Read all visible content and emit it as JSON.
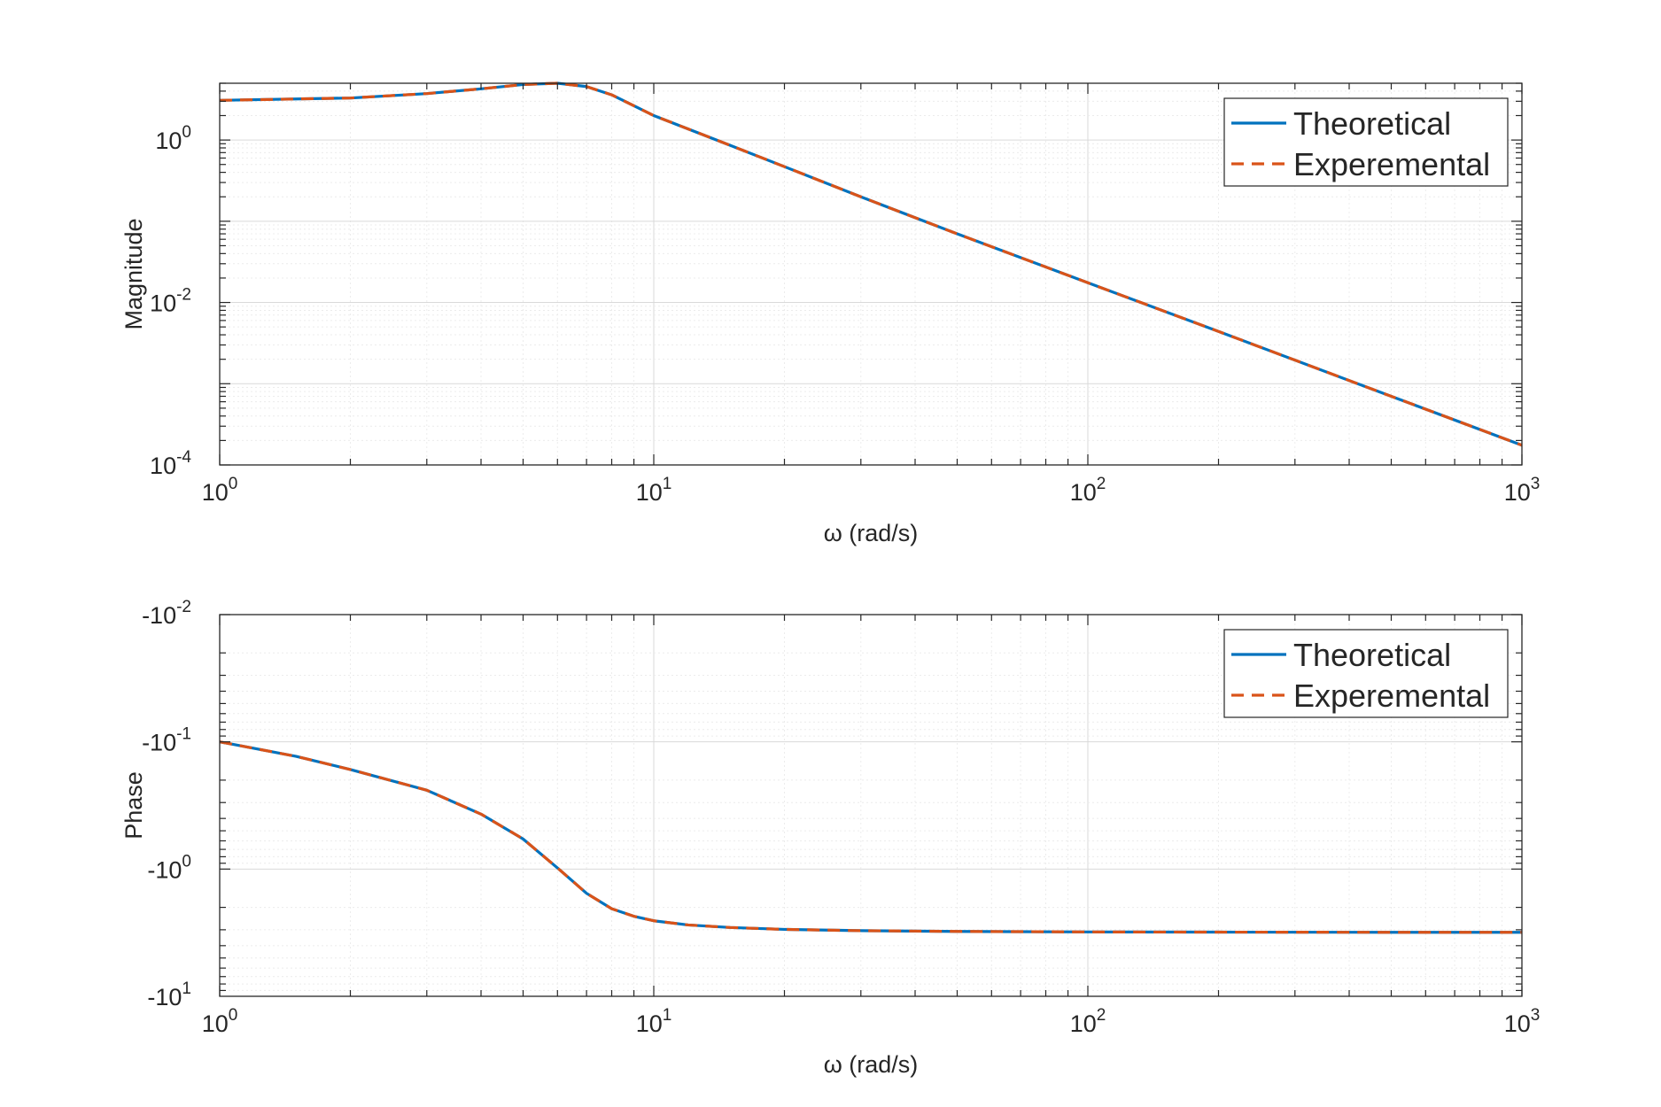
{
  "chart_data": [
    {
      "type": "line",
      "xscale": "log",
      "yscale": "log",
      "xlabel": "ω (rad/s)",
      "ylabel": "Magnitude",
      "xlim": [
        1,
        1000
      ],
      "ylim": [
        0.0001,
        5
      ],
      "grid": true,
      "legend_location": "top-right",
      "xticks": [
        {
          "base": "10",
          "exp": "0"
        },
        {
          "base": "10",
          "exp": "1"
        },
        {
          "base": "10",
          "exp": "2"
        },
        {
          "base": "10",
          "exp": "3"
        }
      ],
      "yticks": [
        {
          "base": "10",
          "exp": "-4"
        },
        {
          "base": "10",
          "exp": "-2"
        },
        {
          "base": "10",
          "exp": "0"
        }
      ],
      "x": [
        1,
        2,
        3,
        4,
        5,
        6,
        7,
        8,
        10,
        15,
        20,
        30,
        50,
        100,
        200,
        500,
        1000
      ],
      "series": [
        {
          "name": "Theoretical",
          "color": "#0072BD",
          "dash": "solid",
          "values": [
            3.08,
            3.29,
            3.73,
            4.27,
            4.82,
            5.0,
            4.55,
            3.6,
            2.0,
            0.86,
            0.47,
            0.2,
            0.07,
            0.0175,
            0.0044,
            0.0007,
            0.000175
          ]
        },
        {
          "name": "Experemental",
          "color": "#D95319",
          "dash": "dashed",
          "values": [
            3.08,
            3.29,
            3.73,
            4.27,
            4.82,
            5.0,
            4.55,
            3.6,
            2.0,
            0.86,
            0.47,
            0.2,
            0.07,
            0.0175,
            0.0044,
            0.0007,
            0.000175
          ]
        }
      ]
    },
    {
      "type": "line",
      "xscale": "log",
      "yscale": "log",
      "xlabel": "ω (rad/s)",
      "ylabel": "Phase",
      "xlim": [
        1,
        1000
      ],
      "ylim": [
        -10,
        -0.01
      ],
      "grid": true,
      "legend_location": "top-right",
      "xticks": [
        {
          "base": "10",
          "exp": "0"
        },
        {
          "base": "10",
          "exp": "1"
        },
        {
          "base": "10",
          "exp": "2"
        },
        {
          "base": "10",
          "exp": "3"
        }
      ],
      "yticks": [
        {
          "base": "-10",
          "exp": "-2"
        },
        {
          "base": "-10",
          "exp": "-1"
        },
        {
          "base": "-10",
          "exp": "0"
        },
        {
          "base": "-10",
          "exp": "1"
        }
      ],
      "x": [
        1,
        1.5,
        2,
        3,
        4,
        5,
        6,
        7,
        8,
        9,
        10,
        12,
        15,
        20,
        30,
        50,
        100,
        200,
        500,
        1000
      ],
      "series": [
        {
          "name": "Theoretical",
          "color": "#0072BD",
          "dash": "solid",
          "values": [
            -0.1,
            -0.13,
            -0.165,
            -0.24,
            -0.37,
            -0.58,
            -0.98,
            -1.55,
            -2.05,
            -2.35,
            -2.55,
            -2.75,
            -2.88,
            -2.98,
            -3.05,
            -3.09,
            -3.12,
            -3.13,
            -3.14,
            -3.14
          ]
        },
        {
          "name": "Experemental",
          "color": "#D95319",
          "dash": "dashed",
          "values": [
            -0.1,
            -0.13,
            -0.165,
            -0.24,
            -0.37,
            -0.58,
            -0.98,
            -1.55,
            -2.05,
            -2.35,
            -2.55,
            -2.75,
            -2.88,
            -2.98,
            -3.05,
            -3.09,
            -3.12,
            -3.13,
            -3.14,
            -3.14
          ]
        }
      ]
    }
  ]
}
